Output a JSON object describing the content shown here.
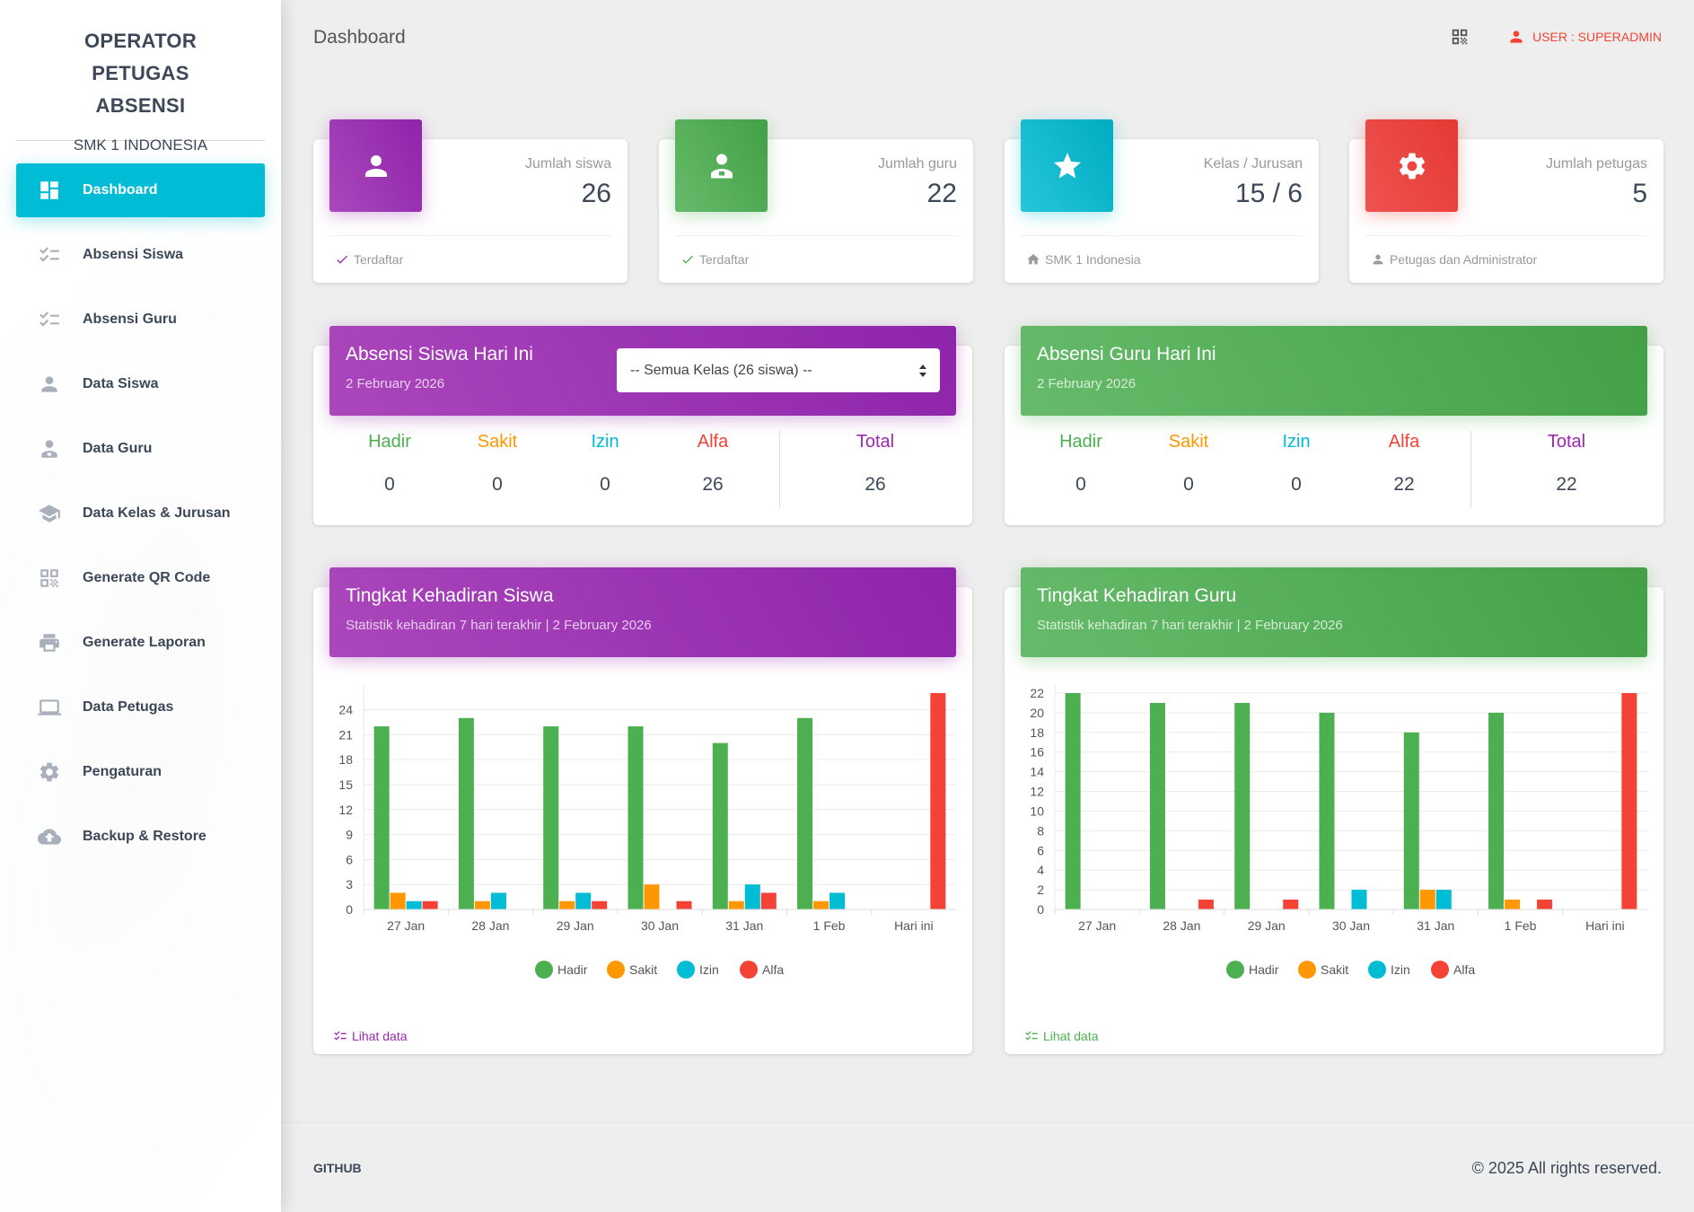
{
  "sidebar": {
    "title": "OPERATOR PETUGAS ABSENSI",
    "subtitle": "SMK 1 INDONESIA",
    "items": [
      {
        "label": "Dashboard",
        "icon": "dashboard-icon",
        "active": true
      },
      {
        "label": "Absensi Siswa",
        "icon": "checklist-icon"
      },
      {
        "label": "Absensi Guru",
        "icon": "checklist-icon"
      },
      {
        "label": "Data Siswa",
        "icon": "person-icon"
      },
      {
        "label": "Data Guru",
        "icon": "person-badge-icon"
      },
      {
        "label": "Data Kelas & Jurusan",
        "icon": "school-icon"
      },
      {
        "label": "Generate QR Code",
        "icon": "qr-code-icon"
      },
      {
        "label": "Generate Laporan",
        "icon": "printer-icon"
      },
      {
        "label": "Data Petugas",
        "icon": "laptop-icon"
      },
      {
        "label": "Pengaturan",
        "icon": "gear-icon"
      },
      {
        "label": "Backup & Restore",
        "icon": "cloud-upload-icon"
      }
    ]
  },
  "header": {
    "title": "Dashboard",
    "user_label": "USER : SUPERADMIN"
  },
  "stats": [
    {
      "category": "Jumlah siswa",
      "value": "26",
      "footer": "Terdaftar",
      "icon": "person-icon",
      "color": "purple"
    },
    {
      "category": "Jumlah guru",
      "value": "22",
      "footer": "Terdaftar",
      "icon": "person-badge-icon",
      "color": "green"
    },
    {
      "category": "Kelas / Jurusan",
      "value": "15 / 6",
      "footer": "SMK 1 Indonesia",
      "icon": "star-icon",
      "color": "cyan"
    },
    {
      "category": "Jumlah petugas",
      "value": "5",
      "footer": "Petugas dan Administrator",
      "icon": "gear-icon",
      "color": "red"
    }
  ],
  "attendance": {
    "siswa": {
      "title": "Absensi Siswa Hari Ini",
      "date": "2 February 2026",
      "select_value": "-- Semua Kelas (26 siswa) --",
      "labels": {
        "hadir": "Hadir",
        "sakit": "Sakit",
        "izin": "Izin",
        "alfa": "Alfa",
        "total": "Total"
      },
      "values": {
        "hadir": "0",
        "sakit": "0",
        "izin": "0",
        "alfa": "26",
        "total": "26"
      }
    },
    "guru": {
      "title": "Absensi Guru Hari Ini",
      "date": "2 February 2026",
      "labels": {
        "hadir": "Hadir",
        "sakit": "Sakit",
        "izin": "Izin",
        "alfa": "Alfa",
        "total": "Total"
      },
      "values": {
        "hadir": "0",
        "sakit": "0",
        "izin": "0",
        "alfa": "22",
        "total": "22"
      }
    }
  },
  "charts": {
    "siswa": {
      "title": "Tingkat Kehadiran Siswa",
      "subtitle": "Statistik kehadiran 7 hari terakhir | 2 February 2026",
      "footer_link": "Lihat data"
    },
    "guru": {
      "title": "Tingkat Kehadiran Guru",
      "subtitle": "Statistik kehadiran 7 hari terakhir | 2 February 2026",
      "footer_link": "Lihat data"
    }
  },
  "colors": {
    "purple": "#9c27b0",
    "green": "#4caf50",
    "cyan": "#00bcd4",
    "red": "#f44336",
    "orange": "#ff9800",
    "hadir": "#4caf50",
    "sakit": "#ff9800",
    "izin": "#00bcd4",
    "alfa": "#f44336"
  },
  "chart_data": [
    {
      "type": "bar",
      "categories": [
        "27 Jan",
        "28 Jan",
        "29 Jan",
        "30 Jan",
        "31 Jan",
        "1 Feb",
        "Hari ini"
      ],
      "series": [
        {
          "name": "Hadir",
          "values": [
            22,
            23,
            22,
            22,
            20,
            23,
            0
          ]
        },
        {
          "name": "Sakit",
          "values": [
            2,
            1,
            1,
            3,
            1,
            1,
            0
          ]
        },
        {
          "name": "Izin",
          "values": [
            1,
            2,
            2,
            0,
            3,
            2,
            0
          ]
        },
        {
          "name": "Alfa",
          "values": [
            1,
            0,
            1,
            1,
            2,
            0,
            26
          ]
        }
      ],
      "yticks": [
        0,
        3,
        6,
        9,
        12,
        15,
        18,
        21,
        24
      ],
      "ylim": [
        0,
        26
      ],
      "grid": true,
      "legend": "bottom"
    },
    {
      "type": "bar",
      "categories": [
        "27 Jan",
        "28 Jan",
        "29 Jan",
        "30 Jan",
        "31 Jan",
        "1 Feb",
        "Hari ini"
      ],
      "series": [
        {
          "name": "Hadir",
          "values": [
            22,
            21,
            21,
            20,
            18,
            20,
            0
          ]
        },
        {
          "name": "Sakit",
          "values": [
            0,
            0,
            0,
            0,
            2,
            1,
            0
          ]
        },
        {
          "name": "Izin",
          "values": [
            0,
            0,
            0,
            2,
            2,
            0,
            0
          ]
        },
        {
          "name": "Alfa",
          "values": [
            0,
            1,
            1,
            0,
            0,
            1,
            22
          ]
        }
      ],
      "yticks": [
        0,
        2,
        4,
        6,
        8,
        10,
        12,
        14,
        16,
        18,
        20,
        22
      ],
      "ylim": [
        0,
        22
      ],
      "grid": true,
      "legend": "bottom"
    }
  ],
  "footer": {
    "link": "GITHUB",
    "copyright": "© 2025 All rights reserved."
  }
}
